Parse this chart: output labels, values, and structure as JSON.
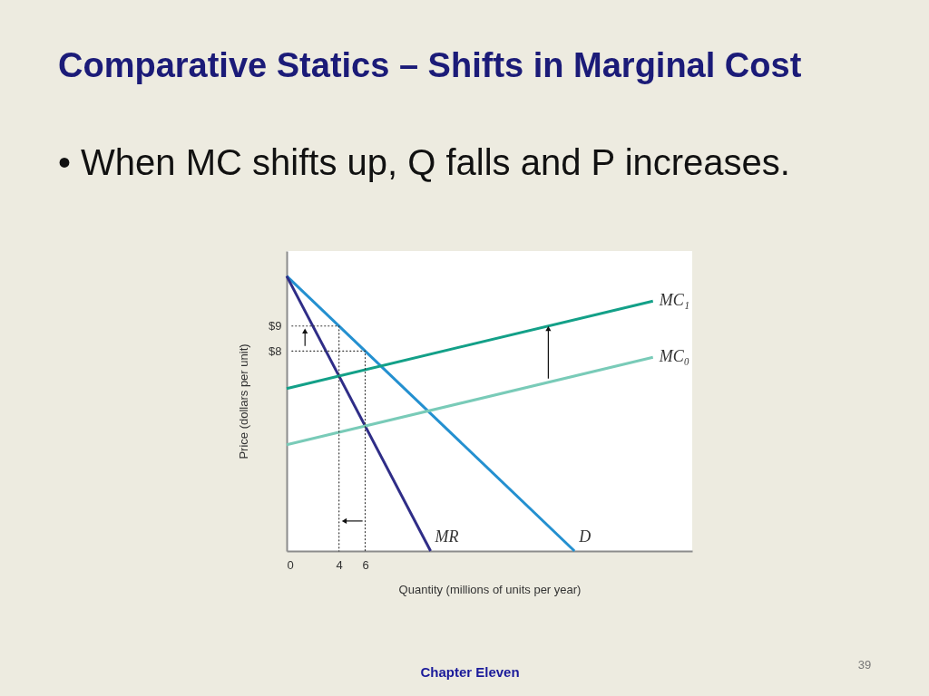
{
  "chart_data": {
    "type": "line",
    "title": "Comparative Statics – Shifts in Marginal Cost",
    "subtitle": "• When MC shifts up, Q falls and P increases.",
    "xlabel": "Quantity (millions of units per year)",
    "ylabel": "Price (dollars per unit)",
    "xlim": [
      0,
      31
    ],
    "ylim": [
      0,
      12
    ],
    "xticks": [
      0,
      4,
      6
    ],
    "yticks": [
      {
        "value": 8,
        "label": "$8"
      },
      {
        "value": 9,
        "label": "$9"
      }
    ],
    "series": [
      {
        "name": "D",
        "color": "#2490d0",
        "x": [
          0,
          22
        ],
        "values": [
          11,
          0
        ]
      },
      {
        "name": "MR",
        "color": "#2f2d87",
        "x": [
          0,
          11
        ],
        "values": [
          11,
          0
        ]
      },
      {
        "name": "MC₁",
        "color": "#13a088",
        "x": [
          0,
          28
        ],
        "values": [
          6.5,
          10
        ]
      },
      {
        "name": "MC₀",
        "color": "#79cbb8",
        "x": [
          0,
          28
        ],
        "values": [
          4.25,
          7.75
        ]
      },
      {
        "color": "#333333",
        "x": [
          0.4,
          4,
          4
        ],
        "values": [
          9,
          9,
          0
        ],
        "line_style": "dotted"
      },
      {
        "color": "#333333",
        "x": [
          0.4,
          6,
          6
        ],
        "values": [
          8,
          8,
          0
        ],
        "line_style": "dotted"
      },
      {
        "color": "#111111",
        "x": [
          1.4,
          1.4
        ],
        "values": [
          8.2,
          8.8
        ],
        "marker": "triangle"
      },
      {
        "color": "#111111",
        "x": [
          20,
          20
        ],
        "values": [
          6.9,
          8.9
        ],
        "marker": "triangle"
      },
      {
        "color": "#111111",
        "x": [
          5.8,
          4.4
        ],
        "values": [
          1.2,
          1.2
        ],
        "marker": "triangle"
      }
    ],
    "annotations": [
      "Chapter Eleven",
      "39"
    ]
  }
}
